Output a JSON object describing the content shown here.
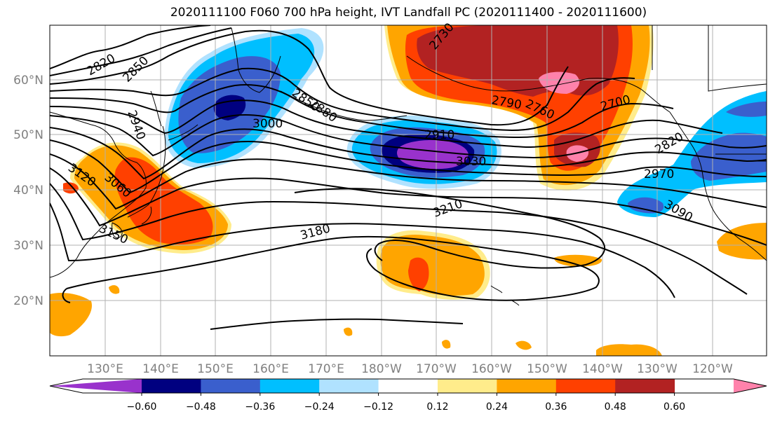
{
  "title": "2020111100 F060 700 hPa height, IVT Landfall PC (2020111400 - 2020111600)",
  "map": {
    "lat_labels": [
      "60°N",
      "50°N",
      "40°N",
      "30°N",
      "20°N"
    ],
    "lon_labels": [
      "130°E",
      "140°E",
      "150°E",
      "160°E",
      "170°E",
      "180°W",
      "170°W",
      "160°W",
      "150°W",
      "140°W",
      "130°W",
      "120°W"
    ],
    "contour_labels": [
      "2820",
      "2850",
      "2850",
      "2880",
      "2730",
      "2790",
      "2760",
      "2700",
      "2820",
      "2940",
      "3000",
      "2910",
      "3030",
      "2970",
      "3120",
      "3060",
      "3090",
      "3150",
      "3180",
      "3210"
    ],
    "field_colors": {
      "strong_negative": "#9932cc",
      "very_negative": "#000080",
      "negative": "#3a5fcd",
      "weak_negative": "#00bfff",
      "slight_negative": "#b0e2ff",
      "neutral": "#ffffff",
      "slight_positive": "#ffec8b",
      "weak_positive": "#ffa500",
      "positive": "#ff4000",
      "strong_positive": "#b22222",
      "very_strong_positive": "#ff82ab"
    }
  },
  "colorbar": {
    "tick_labels": [
      "−0.60",
      "−0.48",
      "−0.36",
      "−0.24",
      "−0.12",
      "0.12",
      "0.24",
      "0.36",
      "0.48",
      "0.60"
    ],
    "colors": [
      "#9932cc",
      "#000080",
      "#3a5fcd",
      "#00bfff",
      "#b0e2ff",
      "#ffffff",
      "#ffec8b",
      "#ffa500",
      "#ff4000",
      "#b22222",
      "#ff82ab"
    ]
  }
}
